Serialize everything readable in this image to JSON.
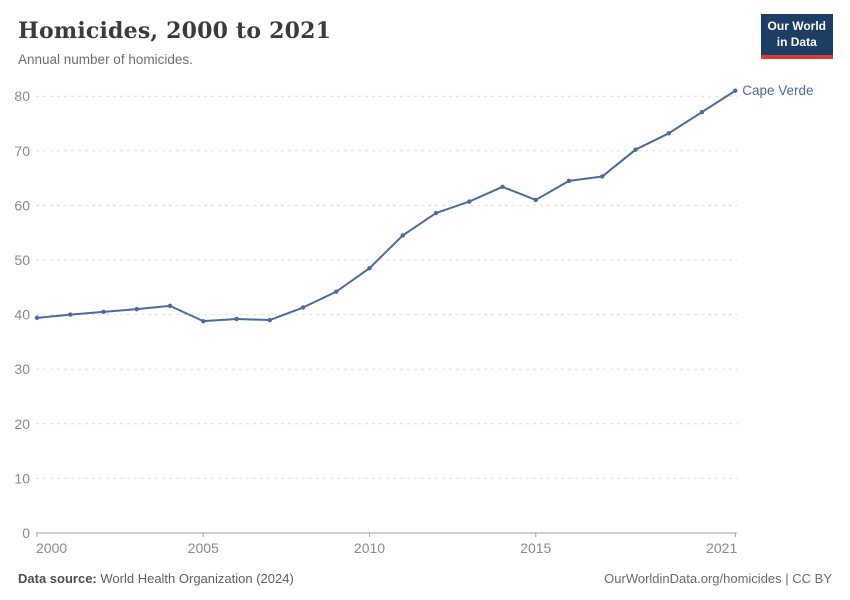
{
  "branding": {
    "logo_line1": "Our World",
    "logo_line2": "in Data",
    "logo_bg": "#1d3d63",
    "logo_accent": "#d73c34"
  },
  "footer": {
    "source_label": "Data source:",
    "source_value": "World Health Organization (2024)",
    "license": "OurWorldinData.org/homicides | CC BY"
  },
  "chart_data": {
    "type": "line",
    "title": "Homicides, 2000 to 2021",
    "subtitle": "Annual number of homicides.",
    "xlabel": "",
    "ylabel": "",
    "x": [
      2000,
      2001,
      2002,
      2003,
      2004,
      2005,
      2006,
      2007,
      2008,
      2009,
      2010,
      2011,
      2012,
      2013,
      2014,
      2015,
      2016,
      2017,
      2018,
      2019,
      2020,
      2021
    ],
    "series": [
      {
        "name": "Cape Verde",
        "color": "#4c6a9c",
        "values": [
          39.4,
          40.0,
          40.5,
          41.0,
          41.6,
          38.8,
          39.2,
          39.0,
          41.3,
          44.2,
          48.5,
          54.5,
          58.6,
          60.7,
          63.4,
          61.0,
          64.5,
          65.3,
          70.2,
          73.2,
          77.1,
          81.0
        ]
      }
    ],
    "ylim": [
      0,
      80
    ],
    "xlim": [
      2000,
      2021
    ],
    "yticks": [
      0,
      10,
      20,
      30,
      40,
      50,
      60,
      70,
      80
    ],
    "xticks": [
      2000,
      2005,
      2010,
      2015,
      2021
    ],
    "grid": "horizontal-dashed",
    "grid_color": "#dcdcdc",
    "axis_color": "#a3a3a3",
    "tick_label_color": "#8a8a8a",
    "legend": "end-of-line-label",
    "marker": "point"
  }
}
